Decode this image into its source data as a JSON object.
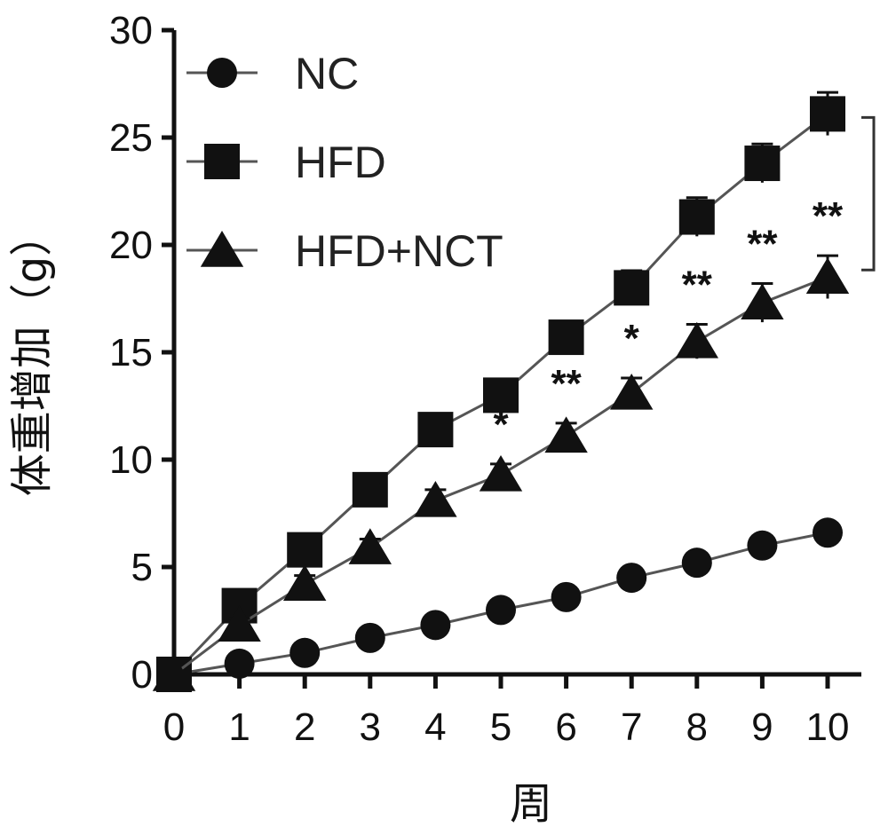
{
  "chart_data": {
    "type": "line",
    "title": "",
    "xlabel": "周",
    "ylabel": "体重增加（g）",
    "x": [
      0,
      1,
      2,
      3,
      4,
      5,
      6,
      7,
      8,
      9,
      10
    ],
    "xticks": [
      "0",
      "1",
      "2",
      "3",
      "4",
      "5",
      "6",
      "7",
      "8",
      "9",
      "10"
    ],
    "yticks": [
      "0",
      "5",
      "10",
      "15",
      "20",
      "25",
      "30"
    ],
    "xlim": [
      0,
      10
    ],
    "ylim": [
      0,
      30
    ],
    "grid": false,
    "legend_position": "top-left",
    "series": [
      {
        "name": "NC",
        "marker": "circle",
        "values": [
          0,
          0.5,
          1.0,
          1.7,
          2.3,
          3.0,
          3.6,
          4.5,
          5.2,
          6.0,
          6.6
        ],
        "errors": [
          0,
          0.2,
          0.2,
          0.3,
          0.3,
          0.3,
          0.3,
          0.3,
          0.3,
          0.3,
          0.4
        ]
      },
      {
        "name": "HFD",
        "marker": "square",
        "values": [
          0,
          3.2,
          5.8,
          8.6,
          11.4,
          13.0,
          15.7,
          18.0,
          21.3,
          23.8,
          26.1
        ],
        "errors": [
          0,
          0.4,
          0.4,
          0.5,
          0.5,
          0.6,
          0.7,
          0.8,
          0.9,
          0.9,
          1.0
        ]
      },
      {
        "name": "HFD+NCT",
        "marker": "triangle",
        "values": [
          0,
          2.3,
          4.2,
          5.9,
          8.1,
          9.3,
          11.1,
          13.1,
          15.5,
          17.3,
          18.5
        ],
        "errors": [
          0,
          0.3,
          0.4,
          0.4,
          0.5,
          0.5,
          0.6,
          0.7,
          0.8,
          0.9,
          1.0
        ]
      }
    ],
    "annotations": [
      {
        "x": 5,
        "text": "*"
      },
      {
        "x": 6,
        "text": "**"
      },
      {
        "x": 7,
        "text": "*"
      },
      {
        "x": 8,
        "text": "**"
      },
      {
        "x": 9,
        "text": "**"
      },
      {
        "x": 10,
        "text": "**"
      }
    ],
    "bracket": {
      "from_series": "HFD",
      "to_series": "HFD+NCT",
      "at_x": 10
    }
  }
}
